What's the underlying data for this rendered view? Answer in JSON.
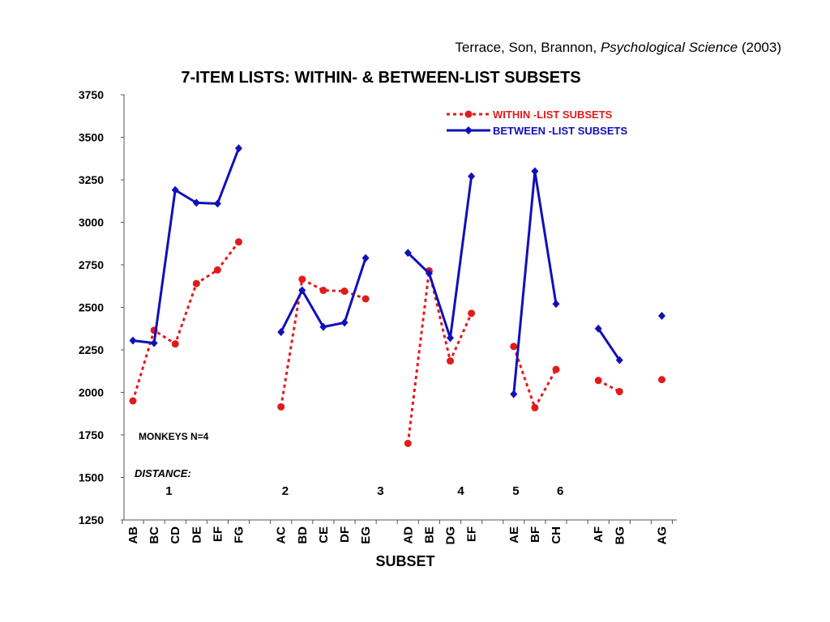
{
  "citation": {
    "authors": "Terrace, Son, Brannon,",
    "journal": "Psychological Science",
    "year": "(2003)"
  },
  "colors": {
    "within": "#e31a1c",
    "between": "#1010b8"
  },
  "chart_data": {
    "type": "line",
    "title": "7-ITEM LISTS: WITHIN- & BETWEEN-LIST SUBSETS",
    "xlabel": "SUBSET",
    "ylabel": "",
    "ylim": [
      1250,
      3750
    ],
    "yticks": [
      1250,
      1500,
      1750,
      2000,
      2250,
      2500,
      2750,
      3000,
      3250,
      3500,
      3750
    ],
    "grid": false,
    "legend_position": "top-right",
    "categories": [
      "AB",
      "BC",
      "CD",
      "DE",
      "EF",
      "FG",
      "",
      "AC",
      "BD",
      "CE",
      "DF",
      "EG",
      "",
      "AD",
      "BE",
      "DG",
      "EF",
      "",
      "AE",
      "BF",
      "CH",
      "",
      "AF",
      "BG",
      "",
      "AG"
    ],
    "series": [
      {
        "name": "WITHIN -LIST SUBSETS",
        "style": "dotted-circle",
        "values": [
          1950,
          2365,
          2285,
          2640,
          2720,
          2885,
          null,
          1915,
          2665,
          2600,
          2595,
          2550,
          null,
          1700,
          2715,
          2185,
          2465,
          null,
          2270,
          1910,
          2135,
          null,
          2070,
          2005,
          null,
          2075
        ]
      },
      {
        "name": "BETWEEN -LIST SUBSETS",
        "style": "solid-diamond",
        "values": [
          2305,
          2290,
          3190,
          3115,
          3110,
          3435,
          null,
          2355,
          2600,
          2385,
          2410,
          2790,
          null,
          2820,
          2700,
          2320,
          3270,
          null,
          1990,
          3300,
          2520,
          null,
          2375,
          2190,
          null,
          2450
        ]
      }
    ],
    "annotations": {
      "monkeys": "MONKEYS N=4",
      "distance_label": "DISTANCE:",
      "distances": [
        {
          "label": "1",
          "at": 1.7
        },
        {
          "label": "2",
          "at": 7.2
        },
        {
          "label": "3",
          "at": 11.7
        },
        {
          "label": "4",
          "at": 15.5
        },
        {
          "label": "5",
          "at": 18.1
        },
        {
          "label": "6",
          "at": 20.2
        }
      ]
    }
  }
}
